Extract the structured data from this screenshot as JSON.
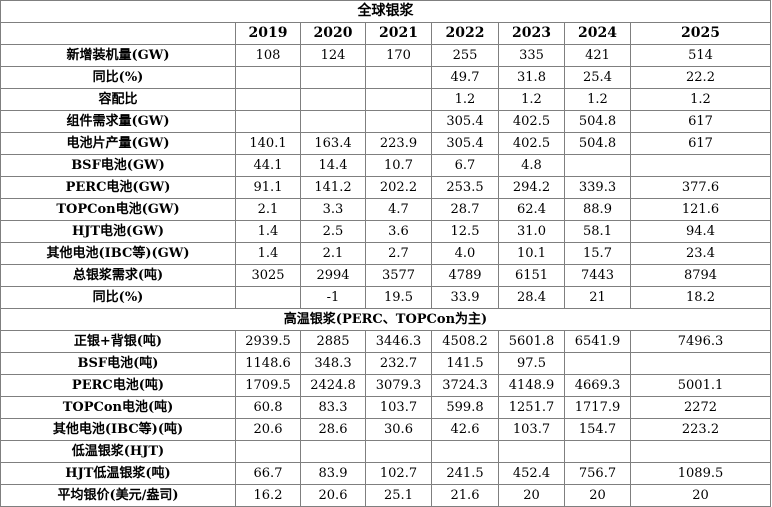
{
  "title": "全球银浆",
  "years": [
    "2019",
    "2020",
    "2021",
    "2022",
    "2023",
    "2024",
    "2025"
  ],
  "rows": [
    {
      "label": "新增装机量(GW)",
      "values": [
        "108",
        "124",
        "170",
        "255",
        "335",
        "421",
        "514"
      ]
    },
    {
      "label": "同比(%)",
      "values": [
        "",
        "",
        "",
        "49.7",
        "31.8",
        "25.4",
        "22.2"
      ]
    },
    {
      "label": "容配比",
      "values": [
        "",
        "",
        "",
        "1.2",
        "1.2",
        "1.2",
        "1.2"
      ]
    },
    {
      "label": "组件需求量(GW)",
      "values": [
        "",
        "",
        "",
        "305.4",
        "402.5",
        "504.8",
        "617"
      ]
    },
    {
      "label": "电池片产量(GW)",
      "values": [
        "140.1",
        "163.4",
        "223.9",
        "305.4",
        "402.5",
        "504.8",
        "617"
      ]
    },
    {
      "label": "BSF电池(GW)",
      "values": [
        "44.1",
        "14.4",
        "10.7",
        "6.7",
        "4.8",
        "",
        ""
      ]
    },
    {
      "label": "PERC电池(GW)",
      "values": [
        "91.1",
        "141.2",
        "202.2",
        "253.5",
        "294.2",
        "339.3",
        "377.6"
      ]
    },
    {
      "label": "TOPCon电池(GW)",
      "values": [
        "2.1",
        "3.3",
        "4.7",
        "28.7",
        "62.4",
        "88.9",
        "121.6"
      ]
    },
    {
      "label": "HJT电池(GW)",
      "values": [
        "1.4",
        "2.5",
        "3.6",
        "12.5",
        "31.0",
        "58.1",
        "94.4"
      ]
    },
    {
      "label": "其他电池(IBC等)(GW)",
      "values": [
        "1.4",
        "2.1",
        "2.7",
        "4.0",
        "10.1",
        "15.7",
        "23.4"
      ]
    },
    {
      "label": "总银浆需求(吨)",
      "values": [
        "3025",
        "2994",
        "3577",
        "4789",
        "6151",
        "7443",
        "8794"
      ]
    },
    {
      "label": "同比(%)",
      "values": [
        "",
        "-1",
        "19.5",
        "33.9",
        "28.4",
        "21",
        "18.2"
      ]
    },
    {
      "label": "高温银浆(PERC、TOPCon为主)",
      "section": true,
      "values": []
    },
    {
      "label": "正银+背银(吨)",
      "values": [
        "2939.5",
        "2885",
        "3446.3",
        "4508.2",
        "5601.8",
        "6541.9",
        "7496.3"
      ]
    },
    {
      "label": "BSF电池(吨)",
      "values": [
        "1148.6",
        "348.3",
        "232.7",
        "141.5",
        "97.5",
        "",
        ""
      ]
    },
    {
      "label": "PERC电池(吨)",
      "values": [
        "1709.5",
        "2424.8",
        "3079.3",
        "3724.3",
        "4148.9",
        "4669.3",
        "5001.1"
      ]
    },
    {
      "label": "TOPCon电池(吨)",
      "values": [
        "60.8",
        "83.3",
        "103.7",
        "599.8",
        "1251.7",
        "1717.9",
        "2272"
      ]
    },
    {
      "label": "其他电池(IBC等)(吨)",
      "values": [
        "20.6",
        "28.6",
        "30.6",
        "42.6",
        "103.7",
        "154.7",
        "223.2"
      ]
    },
    {
      "label": "低温银浆(HJT)",
      "values": [
        "",
        "",
        "",
        "",
        "",
        "",
        ""
      ]
    },
    {
      "label": "HJT低温银浆(吨)",
      "values": [
        "66.7",
        "83.9",
        "102.7",
        "241.5",
        "452.4",
        "756.7",
        "1089.5"
      ]
    },
    {
      "label": "平均银价(美元/盎司)",
      "values": [
        "16.2",
        "20.6",
        "25.1",
        "21.6",
        "20",
        "20",
        "20"
      ]
    }
  ]
}
